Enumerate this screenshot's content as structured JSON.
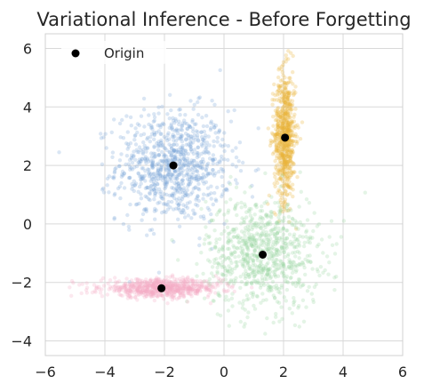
{
  "chart_data": {
    "type": "scatter",
    "title": "Variational Inference - Before Forgetting",
    "xlabel": "",
    "ylabel": "",
    "xlim": [
      -6,
      6
    ],
    "ylim": [
      -4.5,
      6.5
    ],
    "xticks": [
      -6,
      -4,
      -2,
      0,
      2,
      4,
      6
    ],
    "yticks": [
      -4,
      -2,
      0,
      2,
      4,
      6
    ],
    "grid": true,
    "legend": {
      "placement": "top-left",
      "entries": [
        "Origin"
      ]
    },
    "clusters": [
      {
        "color": "#7aa6d8",
        "center": [
          -1.7,
          2.0
        ],
        "spread": [
          0.95,
          0.95
        ],
        "count": 900
      },
      {
        "color": "#e8b23a",
        "center": [
          2.05,
          3.0
        ],
        "spread": [
          0.18,
          1.1
        ],
        "count": 700
      },
      {
        "color": "#9fd8a6",
        "center": [
          1.3,
          -1.0
        ],
        "spread": [
          0.95,
          0.95
        ],
        "count": 850
      },
      {
        "color": "#f5aec4",
        "center": [
          -2.1,
          -2.2
        ],
        "spread": [
          1.0,
          0.15
        ],
        "count": 700
      }
    ],
    "series": [
      {
        "name": "Origin",
        "color": "#000000",
        "points": [
          [
            -1.7,
            2.0
          ],
          [
            2.05,
            2.95
          ],
          [
            1.3,
            -1.05
          ],
          [
            -2.1,
            -2.2
          ]
        ]
      }
    ]
  }
}
